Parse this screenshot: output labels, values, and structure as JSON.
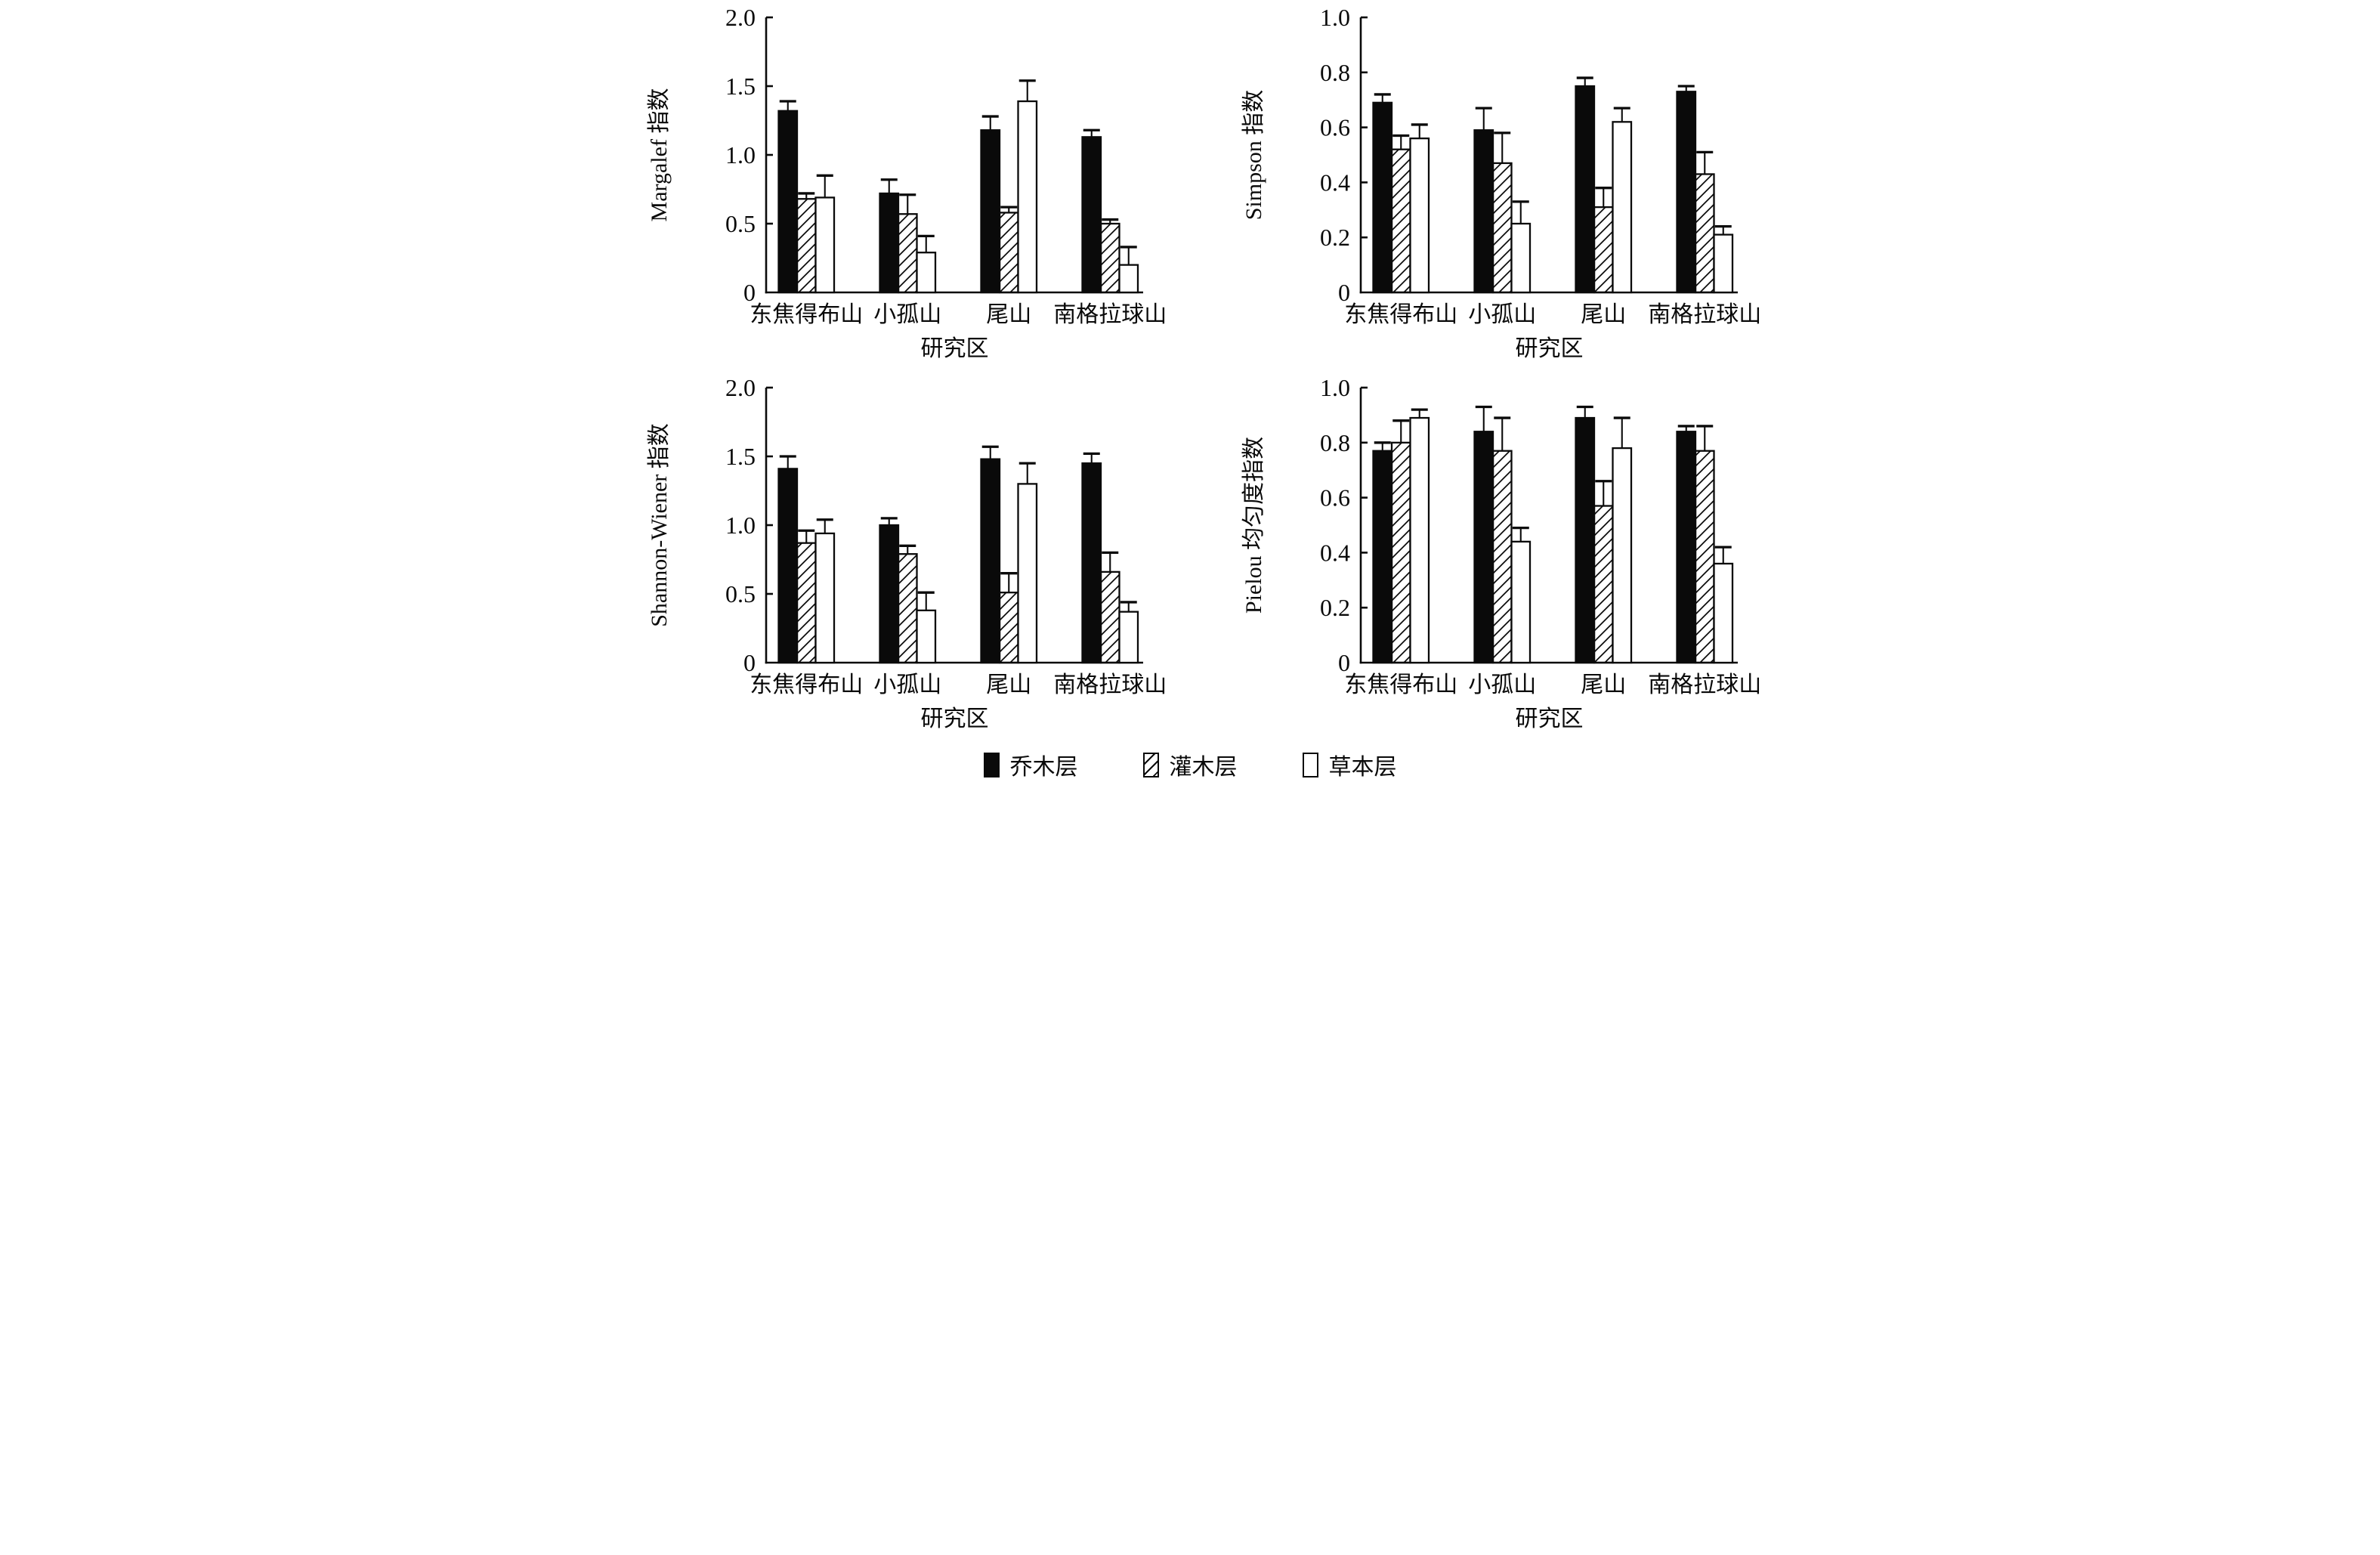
{
  "colors": {
    "ink": "#0a0a0a",
    "background": "#ffffff"
  },
  "legend": {
    "items": [
      {
        "label": "乔木层",
        "fill_style": "solid"
      },
      {
        "label": "灌木层",
        "fill_style": "hatch"
      },
      {
        "label": "草本层",
        "fill_style": "open"
      }
    ]
  },
  "chart_data": [
    {
      "id": "margalef",
      "type": "bar",
      "title": "",
      "ylabel": "Margalef 指数",
      "xlabel": "研究区",
      "ylim": [
        0,
        2.0
      ],
      "yticks": [
        0,
        0.5,
        1.0,
        1.5,
        2.0
      ],
      "ytick_labels": [
        "0",
        "0.5",
        "1.0",
        "1.5",
        "2.0"
      ],
      "categories": [
        "东焦得布山",
        "小孤山",
        "尾山",
        "南格拉球山"
      ],
      "grid": false,
      "error_bars": "upper",
      "legend_position": "figure-bottom",
      "series": [
        {
          "name": "乔木层",
          "fill_style": "solid",
          "values": [
            1.32,
            0.72,
            1.18,
            1.13
          ],
          "errors": [
            0.07,
            0.1,
            0.1,
            0.05
          ]
        },
        {
          "name": "灌木层",
          "fill_style": "hatch",
          "values": [
            0.68,
            0.57,
            0.58,
            0.5
          ],
          "errors": [
            0.04,
            0.14,
            0.04,
            0.03
          ]
        },
        {
          "name": "草本层",
          "fill_style": "open",
          "values": [
            0.69,
            0.29,
            1.39,
            0.2
          ],
          "errors": [
            0.16,
            0.12,
            0.15,
            0.13
          ]
        }
      ]
    },
    {
      "id": "simpson",
      "type": "bar",
      "title": "",
      "ylabel": "Simpson 指数",
      "xlabel": "研究区",
      "ylim": [
        0,
        1.0
      ],
      "yticks": [
        0,
        0.2,
        0.4,
        0.6,
        0.8,
        1.0
      ],
      "ytick_labels": [
        "0",
        "0.2",
        "0.4",
        "0.6",
        "0.8",
        "1.0"
      ],
      "categories": [
        "东焦得布山",
        "小孤山",
        "尾山",
        "南格拉球山"
      ],
      "grid": false,
      "error_bars": "upper",
      "legend_position": "figure-bottom",
      "series": [
        {
          "name": "乔木层",
          "fill_style": "solid",
          "values": [
            0.69,
            0.59,
            0.75,
            0.73
          ],
          "errors": [
            0.03,
            0.08,
            0.03,
            0.02
          ]
        },
        {
          "name": "灌木层",
          "fill_style": "hatch",
          "values": [
            0.52,
            0.47,
            0.31,
            0.43
          ],
          "errors": [
            0.05,
            0.11,
            0.07,
            0.08
          ]
        },
        {
          "name": "草本层",
          "fill_style": "open",
          "values": [
            0.56,
            0.25,
            0.62,
            0.21
          ],
          "errors": [
            0.05,
            0.08,
            0.05,
            0.03
          ]
        }
      ]
    },
    {
      "id": "shannon-wiener",
      "type": "bar",
      "title": "",
      "ylabel": "Shannon-Wiener 指数",
      "xlabel": "研究区",
      "ylim": [
        0,
        2.0
      ],
      "yticks": [
        0,
        0.5,
        1.0,
        1.5,
        2.0
      ],
      "ytick_labels": [
        "0",
        "0.5",
        "1.0",
        "1.5",
        "2.0"
      ],
      "categories": [
        "东焦得布山",
        "小孤山",
        "尾山",
        "南格拉球山"
      ],
      "grid": false,
      "error_bars": "upper",
      "legend_position": "figure-bottom",
      "series": [
        {
          "name": "乔木层",
          "fill_style": "solid",
          "values": [
            1.41,
            1.0,
            1.48,
            1.45
          ],
          "errors": [
            0.09,
            0.05,
            0.09,
            0.07
          ]
        },
        {
          "name": "灌木层",
          "fill_style": "hatch",
          "values": [
            0.87,
            0.79,
            0.51,
            0.66
          ],
          "errors": [
            0.09,
            0.06,
            0.14,
            0.14
          ]
        },
        {
          "name": "草本层",
          "fill_style": "open",
          "values": [
            0.94,
            0.38,
            1.3,
            0.37
          ],
          "errors": [
            0.1,
            0.13,
            0.15,
            0.07
          ]
        }
      ]
    },
    {
      "id": "pielou",
      "type": "bar",
      "title": "",
      "ylabel": "Pielou 均匀度指数",
      "xlabel": "研究区",
      "ylim": [
        0,
        1.0
      ],
      "yticks": [
        0,
        0.2,
        0.4,
        0.6,
        0.8,
        1.0
      ],
      "ytick_labels": [
        "0",
        "0.2",
        "0.4",
        "0.6",
        "0.8",
        "1.0"
      ],
      "categories": [
        "东焦得布山",
        "小孤山",
        "尾山",
        "南格拉球山"
      ],
      "grid": false,
      "error_bars": "upper",
      "legend_position": "figure-bottom",
      "series": [
        {
          "name": "乔木层",
          "fill_style": "solid",
          "values": [
            0.77,
            0.84,
            0.89,
            0.84
          ],
          "errors": [
            0.03,
            0.09,
            0.04,
            0.02
          ]
        },
        {
          "name": "灌木层",
          "fill_style": "hatch",
          "values": [
            0.8,
            0.77,
            0.57,
            0.77
          ],
          "errors": [
            0.08,
            0.12,
            0.09,
            0.09
          ]
        },
        {
          "name": "草本层",
          "fill_style": "open",
          "values": [
            0.89,
            0.44,
            0.78,
            0.36
          ],
          "errors": [
            0.03,
            0.05,
            0.11,
            0.06
          ]
        }
      ]
    }
  ]
}
